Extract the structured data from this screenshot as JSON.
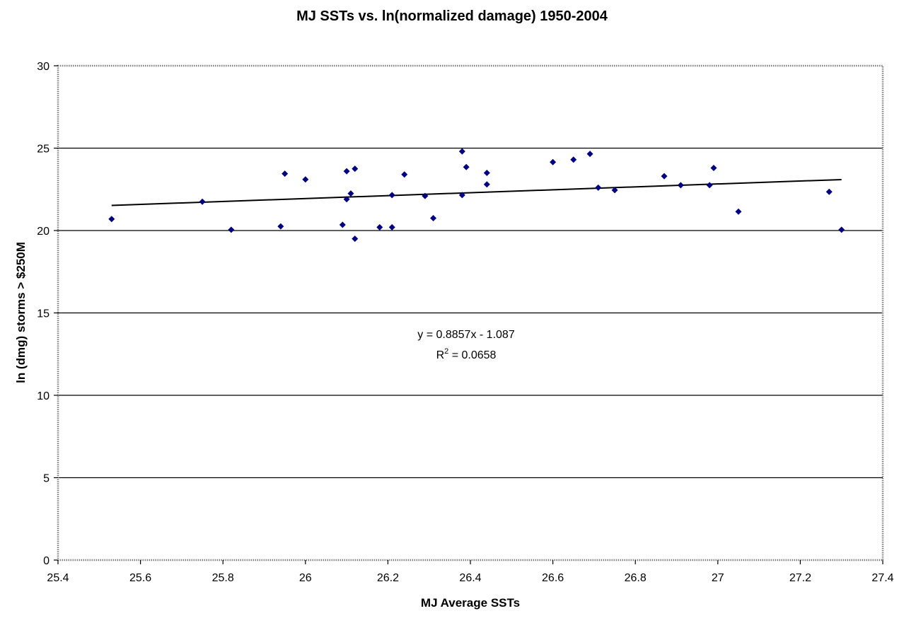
{
  "chart_data": {
    "type": "scatter",
    "title": "MJ SSTs vs. ln(normalized damage) 1950-2004",
    "xlabel": "MJ Average SSTs",
    "ylabel": "ln (dmg) storms > $250M",
    "xlim": [
      25.4,
      27.4
    ],
    "ylim": [
      0,
      30
    ],
    "x_ticks": [
      "25.4",
      "25.6",
      "25.8",
      "26",
      "26.2",
      "26.4",
      "26.6",
      "26.8",
      "27",
      "27.2",
      "27.4"
    ],
    "y_ticks": [
      "0",
      "5",
      "10",
      "15",
      "20",
      "25",
      "30"
    ],
    "grid": "horizontal",
    "marker_color": "#000080",
    "points": [
      {
        "x": 25.53,
        "y": 20.7
      },
      {
        "x": 25.75,
        "y": 21.75
      },
      {
        "x": 25.82,
        "y": 20.05
      },
      {
        "x": 25.94,
        "y": 20.25
      },
      {
        "x": 25.95,
        "y": 23.45
      },
      {
        "x": 26.0,
        "y": 23.1
      },
      {
        "x": 26.09,
        "y": 20.35
      },
      {
        "x": 26.1,
        "y": 23.6
      },
      {
        "x": 26.1,
        "y": 21.9
      },
      {
        "x": 26.11,
        "y": 22.25
      },
      {
        "x": 26.12,
        "y": 23.75
      },
      {
        "x": 26.12,
        "y": 19.5
      },
      {
        "x": 26.18,
        "y": 20.2
      },
      {
        "x": 26.21,
        "y": 20.2
      },
      {
        "x": 26.21,
        "y": 22.15
      },
      {
        "x": 26.24,
        "y": 23.4
      },
      {
        "x": 26.29,
        "y": 22.1
      },
      {
        "x": 26.31,
        "y": 20.75
      },
      {
        "x": 26.38,
        "y": 24.8
      },
      {
        "x": 26.38,
        "y": 22.15
      },
      {
        "x": 26.39,
        "y": 23.85
      },
      {
        "x": 26.44,
        "y": 23.5
      },
      {
        "x": 26.44,
        "y": 22.8
      },
      {
        "x": 26.6,
        "y": 24.15
      },
      {
        "x": 26.65,
        "y": 24.3
      },
      {
        "x": 26.69,
        "y": 24.65
      },
      {
        "x": 26.71,
        "y": 22.6
      },
      {
        "x": 26.75,
        "y": 22.45
      },
      {
        "x": 26.87,
        "y": 23.3
      },
      {
        "x": 26.91,
        "y": 22.75
      },
      {
        "x": 26.98,
        "y": 22.75
      },
      {
        "x": 26.99,
        "y": 23.8
      },
      {
        "x": 27.05,
        "y": 21.15
      },
      {
        "x": 27.27,
        "y": 22.35
      },
      {
        "x": 27.3,
        "y": 20.05
      }
    ],
    "trendline": {
      "slope": 0.8857,
      "intercept": -1.087,
      "x_start": 25.53,
      "x_end": 27.3,
      "equation": "y = 0.8857x - 1.087",
      "r2_prefix": "R",
      "r2_sup": "2",
      "r2_suffix": " = 0.0658"
    }
  }
}
